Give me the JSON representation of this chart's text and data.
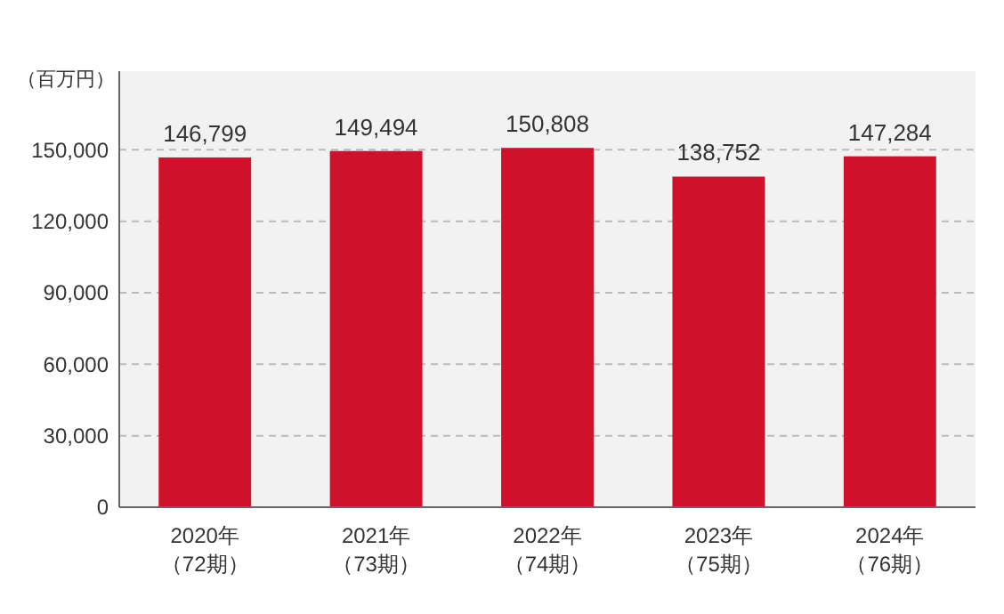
{
  "chart_data": {
    "type": "bar",
    "ylabel": "（百万円）",
    "categories": [
      "2020年（72期）",
      "2021年（73期）",
      "2022年（74期）",
      "2023年（75期）",
      "2024年（76期）"
    ],
    "values": [
      146799,
      149494,
      150808,
      138752,
      147284
    ],
    "value_labels": [
      "146,799",
      "149,494",
      "150,808",
      "138,752",
      "147,284"
    ],
    "color": "#d0112b",
    "ylim": [
      0,
      183000
    ],
    "yticks": [
      0,
      {
        "value": 30000,
        "label": "30,000"
      },
      {
        "value": 60000,
        "label": "60,000"
      },
      {
        "value": 90000,
        "label": "90,000"
      },
      {
        "value": 120000,
        "label": "120,000"
      },
      {
        "value": 150000,
        "label": "150,000"
      }
    ],
    "grid": "y"
  }
}
